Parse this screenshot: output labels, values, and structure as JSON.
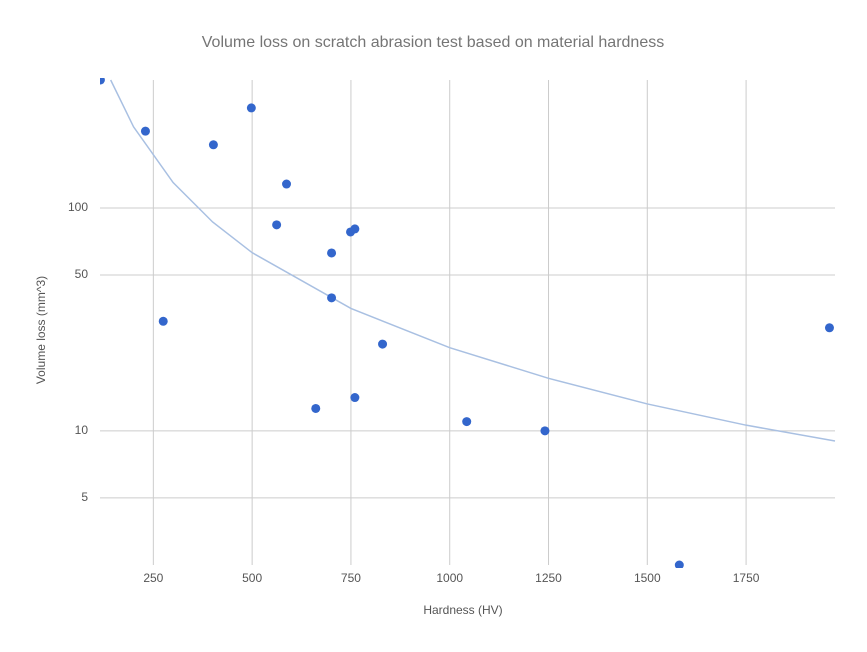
{
  "chart_data": {
    "type": "scatter",
    "title": "Volume loss on scratch abrasion test based on material hardness",
    "x_label": "Hardness (HV)",
    "y_label": "Volume loss (mm^3)",
    "xlim": [
      115,
      1975
    ],
    "ylim": [
      2.5,
      375
    ],
    "y_log": true,
    "grid": true,
    "xticks": [
      250,
      500,
      750,
      1000,
      1250,
      1500,
      1750
    ],
    "yticks": [
      5,
      10,
      50,
      100
    ],
    "series": [
      {
        "color": "#3366cc",
        "x": [
          116,
          230,
          402,
          498,
          587,
          562,
          275,
          701,
          701,
          749,
          760,
          830,
          661,
          760,
          1043,
          1241,
          1581,
          1961
        ],
        "values": [
          375,
          221,
          192,
          281,
          128,
          84,
          31,
          62.8,
          39.5,
          78,
          80.5,
          24.5,
          12.6,
          14.1,
          11,
          10,
          2.5,
          29
        ]
      }
    ],
    "trendline": {
      "color": "#a9c0e2",
      "x": [
        142,
        200,
        300,
        400,
        500,
        750,
        1000,
        1250,
        1500,
        1750,
        1975
      ],
      "values": [
        375,
        231,
        130,
        86.5,
        63,
        35.4,
        23.6,
        17.2,
        13.2,
        10.6,
        9.0
      ]
    }
  }
}
